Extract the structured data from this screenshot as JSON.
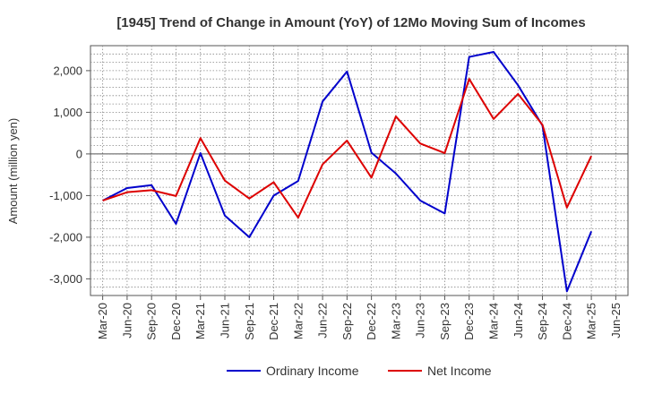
{
  "chart_data": {
    "type": "line",
    "title": "[1945]  Trend of Change in Amount (YoY) of 12Mo Moving Sum of Incomes",
    "xlabel": "",
    "ylabel": "Amount (million yen)",
    "categories": [
      "Mar-20",
      "Jun-20",
      "Sep-20",
      "Dec-20",
      "Mar-21",
      "Jun-21",
      "Sep-21",
      "Dec-21",
      "Mar-22",
      "Jun-22",
      "Sep-22",
      "Dec-22",
      "Mar-23",
      "Jun-23",
      "Sep-23",
      "Dec-23",
      "Mar-24",
      "Jun-24",
      "Sep-24",
      "Dec-24",
      "Mar-25",
      "Jun-25"
    ],
    "yticks": [
      -3000,
      -2000,
      -1000,
      0,
      1000,
      2000
    ],
    "ytick_labels": [
      "-3,000",
      "-2,000",
      "-1,000",
      "0",
      "1,000",
      "2,000"
    ],
    "ylim": [
      -3400,
      2600
    ],
    "grid": true,
    "legend_position": "bottom",
    "series": [
      {
        "name": "Ordinary Income",
        "color": "#0000cc",
        "values": [
          -1120,
          -820,
          -750,
          -1680,
          20,
          -1480,
          -2000,
          -1000,
          -650,
          1260,
          1980,
          30,
          -470,
          -1120,
          -1430,
          2330,
          2450,
          1650,
          680,
          -3300,
          -1860,
          null
        ]
      },
      {
        "name": "Net Income",
        "color": "#dd0000",
        "values": [
          -1120,
          -920,
          -870,
          -1010,
          380,
          -640,
          -1070,
          -680,
          -1530,
          -250,
          320,
          -570,
          900,
          250,
          20,
          1800,
          840,
          1440,
          700,
          -1290,
          -50,
          null
        ]
      }
    ]
  }
}
